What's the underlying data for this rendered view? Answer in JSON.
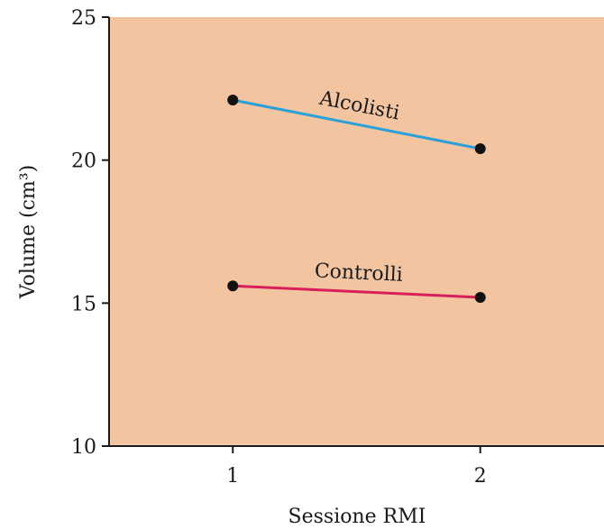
{
  "chart_data": {
    "type": "line",
    "xlabel": "Sessione RMI",
    "ylabel": "Volume (cm³)",
    "x": [
      1,
      2
    ],
    "xlim": [
      0.5,
      2.5
    ],
    "ylim": [
      10,
      25
    ],
    "yticks": [
      10,
      15,
      20,
      25
    ],
    "xticks": [
      1,
      2
    ],
    "plot_background": "#f2c4a0",
    "grid": false,
    "series": [
      {
        "name": "Alcolisti",
        "values": [
          22.1,
          20.4
        ],
        "color": "#2aa0d8"
      },
      {
        "name": "Controlli",
        "values": [
          15.6,
          15.2
        ],
        "color": "#d81e5b"
      }
    ]
  }
}
